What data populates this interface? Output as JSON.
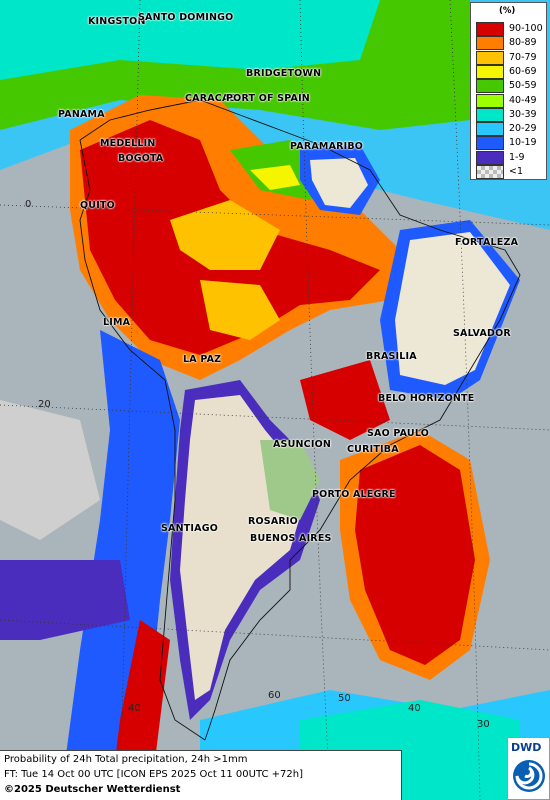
{
  "legend": {
    "unit": "(%)",
    "items": [
      {
        "label": "90-100",
        "color": "#d70000"
      },
      {
        "label": "80-89",
        "color": "#ff7d00"
      },
      {
        "label": "70-79",
        "color": "#ffc200"
      },
      {
        "label": "60-69",
        "color": "#f5f500"
      },
      {
        "label": "50-59",
        "color": "#46c800"
      },
      {
        "label": "40-49",
        "color": "#9bff00"
      },
      {
        "label": "30-39",
        "color": "#00e6c8"
      },
      {
        "label": "20-29",
        "color": "#28c8ff"
      },
      {
        "label": "10-19",
        "color": "#1e5aff"
      },
      {
        "label": "1-9",
        "color": "#4b2dbe"
      },
      {
        "label": "<1",
        "color": "#cfcfcf"
      }
    ]
  },
  "cities": [
    {
      "name": "KINGSTON"
    },
    {
      "name": "SANTO DOMINGO"
    },
    {
      "name": "BRIDGETOWN"
    },
    {
      "name": "CARACAS"
    },
    {
      "name": "PORT OF SPAIN"
    },
    {
      "name": "PANAMA"
    },
    {
      "name": "MEDELLIN"
    },
    {
      "name": "BOGOTA"
    },
    {
      "name": "PARAMARIBO"
    },
    {
      "name": "QUITO"
    },
    {
      "name": "FORTALEZA"
    },
    {
      "name": "LIMA"
    },
    {
      "name": "SALVADOR"
    },
    {
      "name": "BRASILIA"
    },
    {
      "name": "LA PAZ"
    },
    {
      "name": "BELO HORIZONTE"
    },
    {
      "name": "SAO PAULO"
    },
    {
      "name": "ASUNCION"
    },
    {
      "name": "CURITIBA"
    },
    {
      "name": "PORTO ALEGRE"
    },
    {
      "name": "SANTIAGO"
    },
    {
      "name": "ROSARIO"
    },
    {
      "name": "BUENOS AIRES"
    }
  ],
  "grid_labels": {
    "lat_0": "0",
    "lat_20": "20",
    "lat_40": "40",
    "lon_60": "60",
    "lon_50": "50",
    "lon_40": "40",
    "lon_30": "30"
  },
  "footer": {
    "line1": "Probability of 24h Total precipitation, 24h >1mm",
    "line2": "FT: Tue 14 Oct 00 UTC [ICON EPS 2025 Oct 11 00UTC +72h]",
    "line3": "©2025 Deutscher Wetterdienst"
  },
  "logo": {
    "text": "DWD"
  }
}
